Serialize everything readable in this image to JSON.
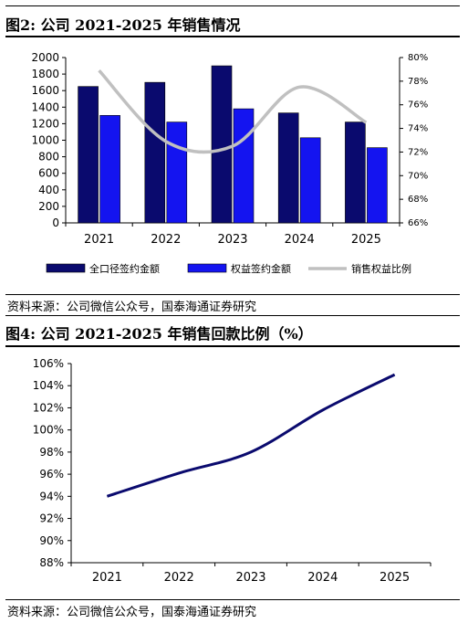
{
  "figures": [
    {
      "title": "图2:  公司 2021-2025 年销售情况",
      "source": "资料来源：公司微信公众号，国泰海通证券研究"
    },
    {
      "title": "图4:  公司 2021-2025 年销售回款比例（%）",
      "source": "资料来源：公司微信公众号，国泰海通证券研究"
    }
  ],
  "chart_data": [
    {
      "type": "bar",
      "categories": [
        "2021",
        "2022",
        "2023",
        "2024",
        "2025"
      ],
      "series": [
        {
          "name": "全口径签约金额",
          "type": "bar",
          "axis": "left",
          "color": "#0a0a6e",
          "values": [
            1650,
            1700,
            1900,
            1330,
            1220
          ]
        },
        {
          "name": "权益签约金额",
          "type": "bar",
          "axis": "left",
          "color": "#1414f0",
          "values": [
            1300,
            1220,
            1380,
            1030,
            910
          ]
        },
        {
          "name": "销售权益比例",
          "type": "line",
          "axis": "right",
          "color": "#c0c0c0",
          "values": [
            78.9,
            72.9,
            72.5,
            77.5,
            74.5
          ]
        }
      ],
      "ylim": [
        0,
        2000
      ],
      "yticks": [
        "0",
        "200",
        "400",
        "600",
        "800",
        "1000",
        "1200",
        "1400",
        "1600",
        "1800",
        "2000"
      ],
      "y2lim": [
        66,
        80
      ],
      "y2ticks": [
        "66%",
        "68%",
        "70%",
        "72%",
        "74%",
        "76%",
        "78%",
        "80%"
      ],
      "legend_position": "bottom",
      "grid": false
    },
    {
      "type": "line",
      "categories": [
        "2021",
        "2022",
        "2023",
        "2024",
        "2025"
      ],
      "series": [
        {
          "color": "#0a0a6e",
          "values": [
            94,
            96.1,
            98,
            101.8,
            105
          ]
        }
      ],
      "ylim": [
        88,
        106
      ],
      "yticks": [
        "88%",
        "90%",
        "92%",
        "94%",
        "96%",
        "98%",
        "100%",
        "102%",
        "104%",
        "106%"
      ],
      "grid": false
    }
  ]
}
